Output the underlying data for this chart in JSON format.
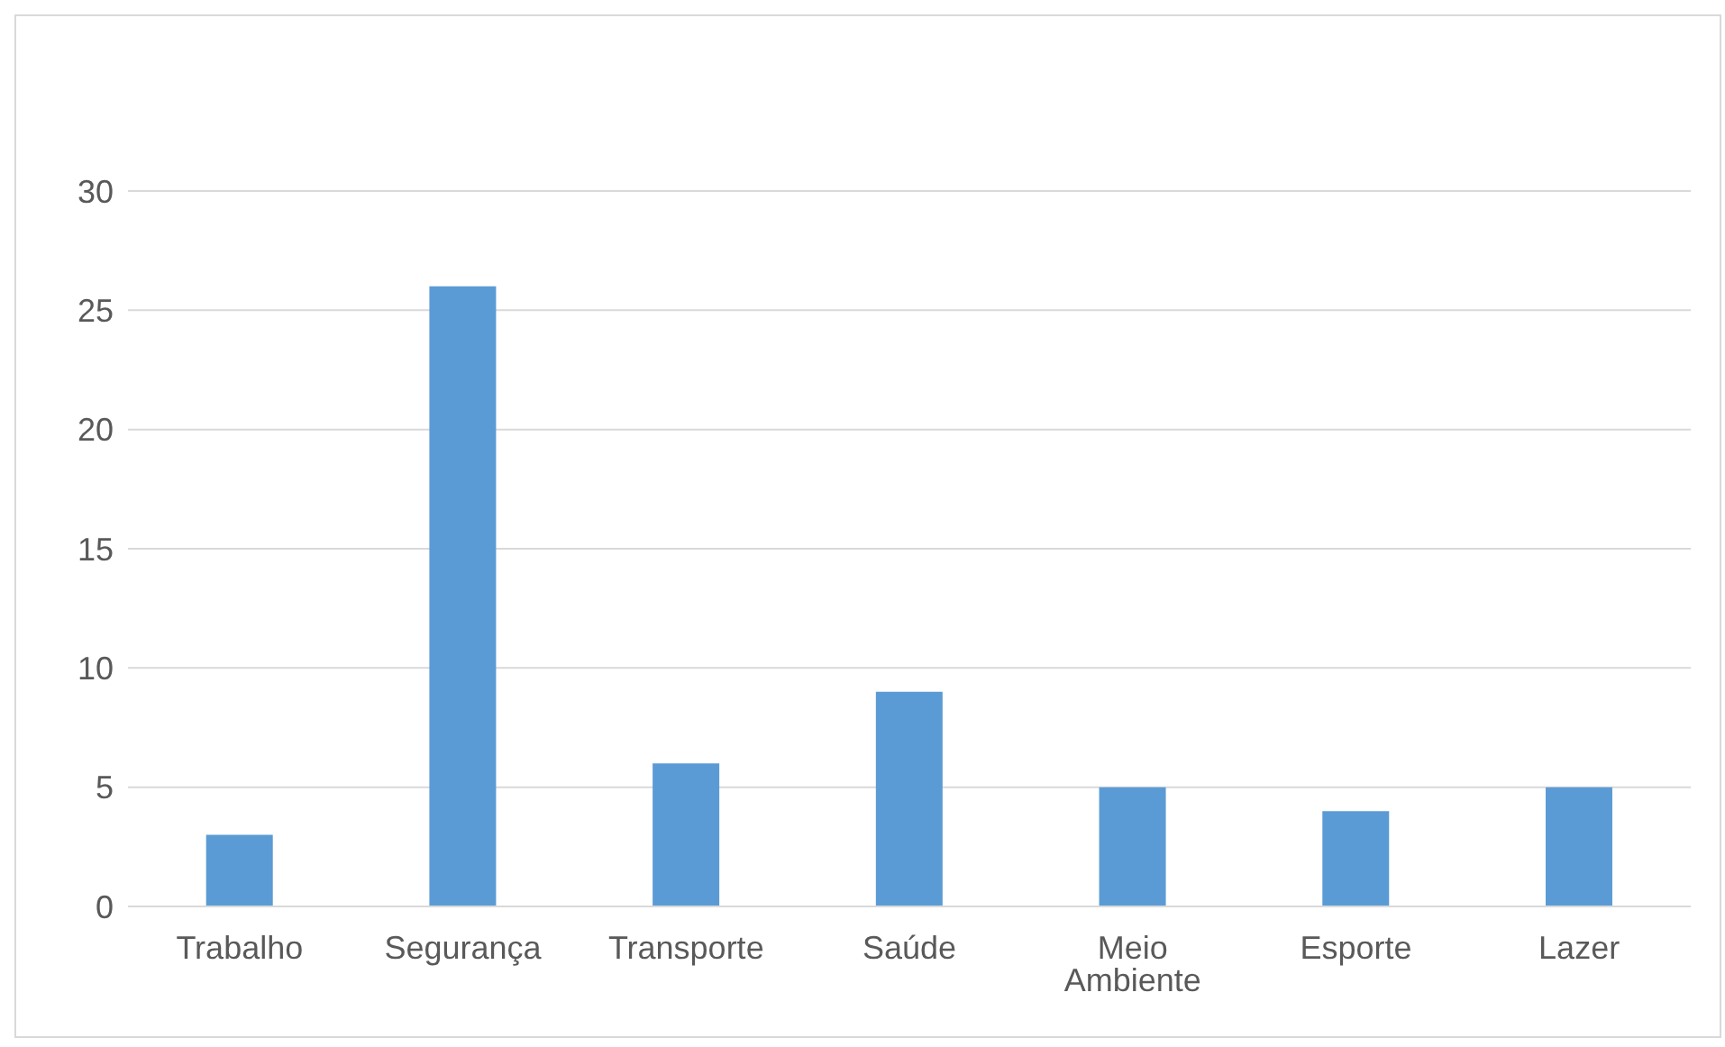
{
  "chart_data": {
    "type": "bar",
    "categories": [
      "Trabalho",
      "Segurança",
      "Transporte",
      "Saúde",
      "Meio Ambiente",
      "Esporte",
      "Lazer"
    ],
    "values": [
      3,
      26,
      6,
      9,
      5,
      4,
      5
    ],
    "color": "#5b9bd5",
    "ylim": [
      0,
      30
    ],
    "yticks": [
      0,
      5,
      10,
      15,
      20,
      25,
      30
    ],
    "grid": "y"
  }
}
